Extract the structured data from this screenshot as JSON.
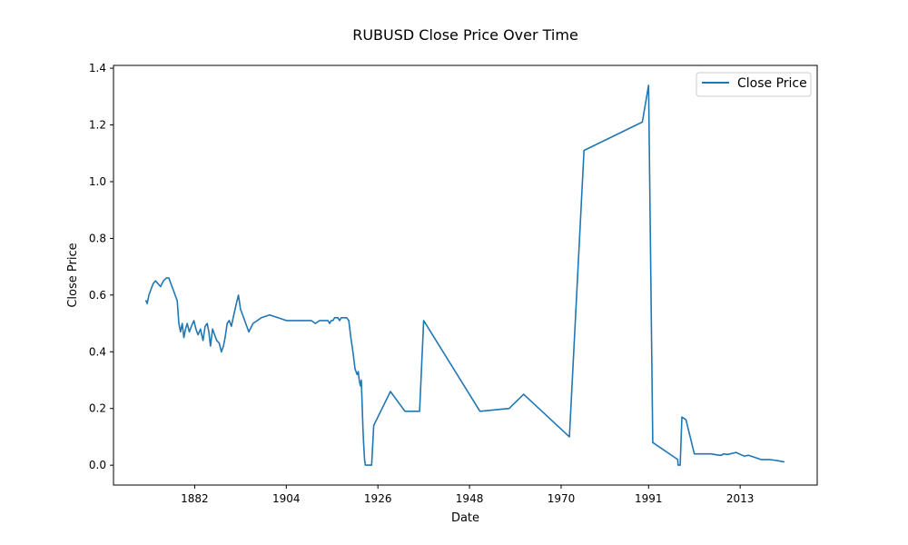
{
  "chart_data": {
    "type": "line",
    "title": "RUBUSD Close Price Over Time",
    "xlabel": "Date",
    "ylabel": "Close Price",
    "xlim": [
      1862.5,
      2031.5
    ],
    "ylim": [
      -0.07,
      1.41
    ],
    "x_ticks": [
      {
        "value": 1882,
        "label": "1882"
      },
      {
        "value": 1904,
        "label": "1904"
      },
      {
        "value": 1926,
        "label": "1926"
      },
      {
        "value": 1948,
        "label": "1948"
      },
      {
        "value": 1970,
        "label": "1970"
      },
      {
        "value": 1991,
        "label": "1991"
      },
      {
        "value": 2013,
        "label": "2013"
      }
    ],
    "y_ticks": [
      {
        "value": 0.0,
        "label": "0.0"
      },
      {
        "value": 0.2,
        "label": "0.2"
      },
      {
        "value": 0.4,
        "label": "0.4"
      },
      {
        "value": 0.6,
        "label": "0.6"
      },
      {
        "value": 0.8,
        "label": "0.8"
      },
      {
        "value": 1.0,
        "label": "1.0"
      },
      {
        "value": 1.2,
        "label": "1.2"
      },
      {
        "value": 1.4,
        "label": "1.4"
      }
    ],
    "grid": false,
    "legend": {
      "position": "top-right"
    },
    "series": [
      {
        "name": "Close Price",
        "color": "#1f77b4",
        "x": [
          1870.3,
          1870.6,
          1871.0,
          1871.5,
          1872.0,
          1872.6,
          1873.2,
          1873.8,
          1874.5,
          1875.2,
          1875.8,
          1876.3,
          1876.8,
          1877.3,
          1877.8,
          1878.2,
          1878.6,
          1879.0,
          1879.4,
          1879.8,
          1880.2,
          1880.7,
          1881.2,
          1881.8,
          1882.3,
          1882.8,
          1883.4,
          1884.0,
          1884.5,
          1885.0,
          1885.4,
          1885.8,
          1886.3,
          1886.8,
          1887.3,
          1887.9,
          1888.4,
          1888.9,
          1889.3,
          1889.8,
          1890.3,
          1890.8,
          1891.4,
          1892.0,
          1892.5,
          1893.0,
          1894.0,
          1895.0,
          1896.0,
          1898.0,
          1900.0,
          1902.0,
          1904.0,
          1906.0,
          1907.0,
          1908.0,
          1910.0,
          1911.0,
          1912.0,
          1913.0,
          1914.0,
          1914.4,
          1914.8,
          1915.2,
          1915.6,
          1916.0,
          1916.4,
          1916.8,
          1917.2,
          1917.6,
          1918.0,
          1918.5,
          1919.0,
          1919.5,
          1920.0,
          1920.5,
          1921.0,
          1921.3,
          1921.5,
          1921.8,
          1922.0,
          1922.2,
          1922.4,
          1922.6,
          1922.8,
          1923.0,
          1923.5,
          1924.0,
          1924.5,
          1925.0,
          1927.0,
          1929.0,
          1932.5,
          1933.0,
          1936.0,
          1937.0,
          1950.5,
          1957.5,
          1961.0,
          1972.0,
          1975.5,
          1989.5,
          1991.0,
          1992.0,
          1998.0,
          1998.1,
          1998.6,
          1999.0,
          2000.0,
          2002.0,
          2004.0,
          2006.0,
          2008.0,
          2008.5,
          2009.0,
          2010.0,
          2012.0,
          2014.0,
          2015.0,
          2016.0,
          2018.0,
          2020.0,
          2021.0,
          2022.0,
          2023.5
        ],
        "values": [
          0.58,
          0.57,
          0.6,
          0.62,
          0.64,
          0.65,
          0.64,
          0.63,
          0.65,
          0.66,
          0.66,
          0.64,
          0.62,
          0.6,
          0.58,
          0.5,
          0.47,
          0.5,
          0.45,
          0.48,
          0.5,
          0.47,
          0.49,
          0.51,
          0.48,
          0.46,
          0.48,
          0.44,
          0.49,
          0.5,
          0.47,
          0.42,
          0.48,
          0.46,
          0.44,
          0.43,
          0.4,
          0.42,
          0.45,
          0.5,
          0.51,
          0.49,
          0.53,
          0.57,
          0.6,
          0.55,
          0.51,
          0.47,
          0.5,
          0.52,
          0.53,
          0.52,
          0.51,
          0.51,
          0.51,
          0.51,
          0.51,
          0.5,
          0.51,
          0.51,
          0.51,
          0.5,
          0.51,
          0.51,
          0.52,
          0.52,
          0.52,
          0.51,
          0.52,
          0.52,
          0.52,
          0.52,
          0.51,
          0.45,
          0.4,
          0.34,
          0.32,
          0.33,
          0.3,
          0.28,
          0.3,
          0.22,
          0.13,
          0.07,
          0.02,
          0.0,
          0.0,
          0.0,
          0.0,
          0.14,
          0.2,
          0.26,
          0.19,
          0.19,
          0.19,
          0.51,
          0.19,
          0.2,
          0.25,
          0.1,
          1.11,
          1.21,
          1.34,
          0.08,
          0.02,
          0.0,
          0.0,
          0.17,
          0.16,
          0.04,
          0.04,
          0.04,
          0.035,
          0.035,
          0.04,
          0.038,
          0.045,
          0.032,
          0.035,
          0.03,
          0.02,
          0.02,
          0.018,
          0.016,
          0.012
        ]
      }
    ]
  }
}
